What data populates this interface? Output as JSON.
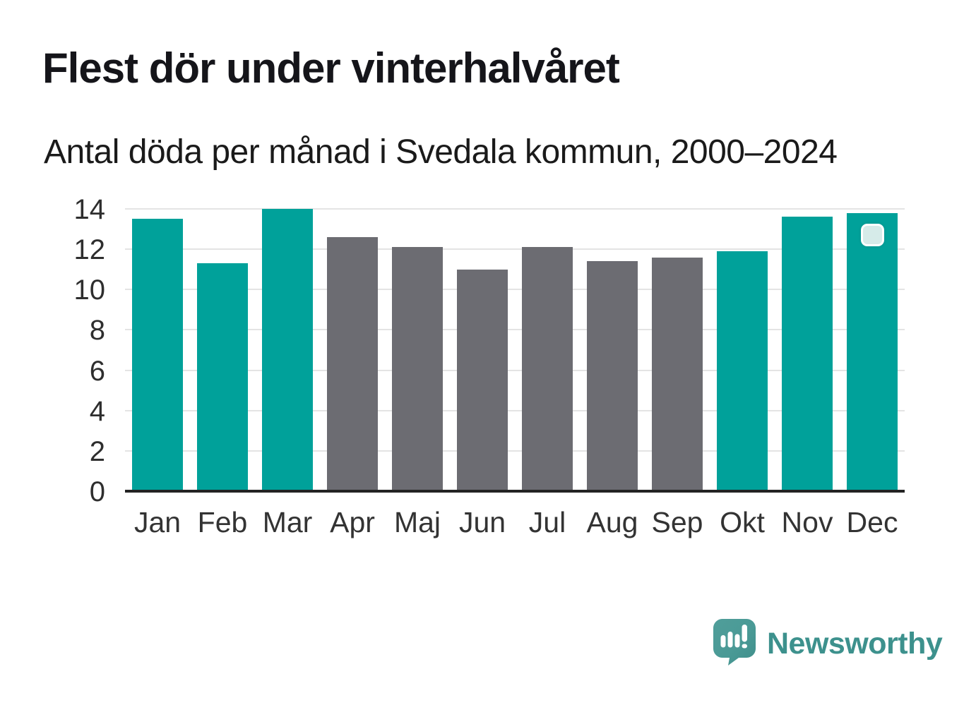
{
  "header": {
    "title": "Flest dör under vinterhalvåret",
    "subtitle": "Antal döda per månad i Svedala kommun, 2000–2024"
  },
  "chart_data": {
    "type": "bar",
    "title": "Flest dör under vinterhalvåret",
    "subtitle": "Antal döda per månad i Svedala kommun, 2000–2024",
    "categories": [
      "Jan",
      "Feb",
      "Mar",
      "Apr",
      "Maj",
      "Jun",
      "Jul",
      "Aug",
      "Sep",
      "Okt",
      "Nov",
      "Dec"
    ],
    "values": [
      13.5,
      11.3,
      14.0,
      12.6,
      12.1,
      11.0,
      12.1,
      11.4,
      11.6,
      11.9,
      13.6,
      13.8
    ],
    "bar_colors": [
      "teal",
      "teal",
      "teal",
      "gray",
      "gray",
      "gray",
      "gray",
      "gray",
      "gray",
      "teal",
      "teal",
      "teal"
    ],
    "xlabel": "",
    "ylabel": "",
    "ylim": [
      0,
      14
    ],
    "yticks": [
      0,
      2,
      4,
      6,
      8,
      10,
      12,
      14
    ],
    "grid": "horizontal",
    "legend": "none"
  },
  "colors": {
    "teal": "#00a19a",
    "gray": "#6c6c72",
    "grid": "#e4e4e4",
    "axis": "#232323",
    "logo_bubble": "#4a9a96",
    "logo_text": "#3d918d"
  },
  "branding": {
    "name": "Newsworthy"
  }
}
